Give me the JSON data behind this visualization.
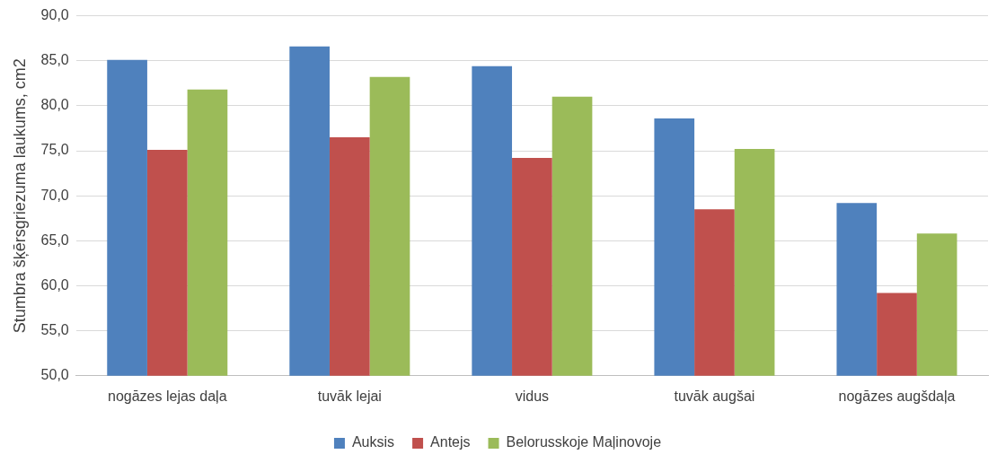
{
  "chart_data": {
    "type": "bar",
    "ylabel": "Stumbra šķērsgriezuma laukums, cm2",
    "categories": [
      "nogāzes lejas daļa",
      "tuvāk lejai",
      "vidus",
      "tuvāk augšai",
      "nogāzes augšdaļa"
    ],
    "series": [
      {
        "name": "Auksis",
        "color": "#4f81bd",
        "values": [
          85.1,
          86.6,
          84.4,
          78.6,
          69.2
        ]
      },
      {
        "name": "Antejs",
        "color": "#c0504d",
        "values": [
          75.1,
          76.5,
          74.2,
          68.5,
          59.2
        ]
      },
      {
        "name": "Belorusskoje Maļinovoje",
        "color": "#9bbb59",
        "values": [
          81.8,
          83.2,
          81.0,
          75.2,
          65.8
        ]
      }
    ],
    "ylim": [
      50,
      90
    ],
    "yticks": [
      {
        "value": 50,
        "label": "50,0"
      },
      {
        "value": 55,
        "label": "55,0"
      },
      {
        "value": 60,
        "label": "60,0"
      },
      {
        "value": 65,
        "label": "65,0"
      },
      {
        "value": 70,
        "label": "70,0"
      },
      {
        "value": 75,
        "label": "75,0"
      },
      {
        "value": 80,
        "label": "80,0"
      },
      {
        "value": 85,
        "label": "85,0"
      },
      {
        "value": 90,
        "label": "90,0"
      }
    ],
    "grid": "y",
    "legend": "bottom"
  }
}
